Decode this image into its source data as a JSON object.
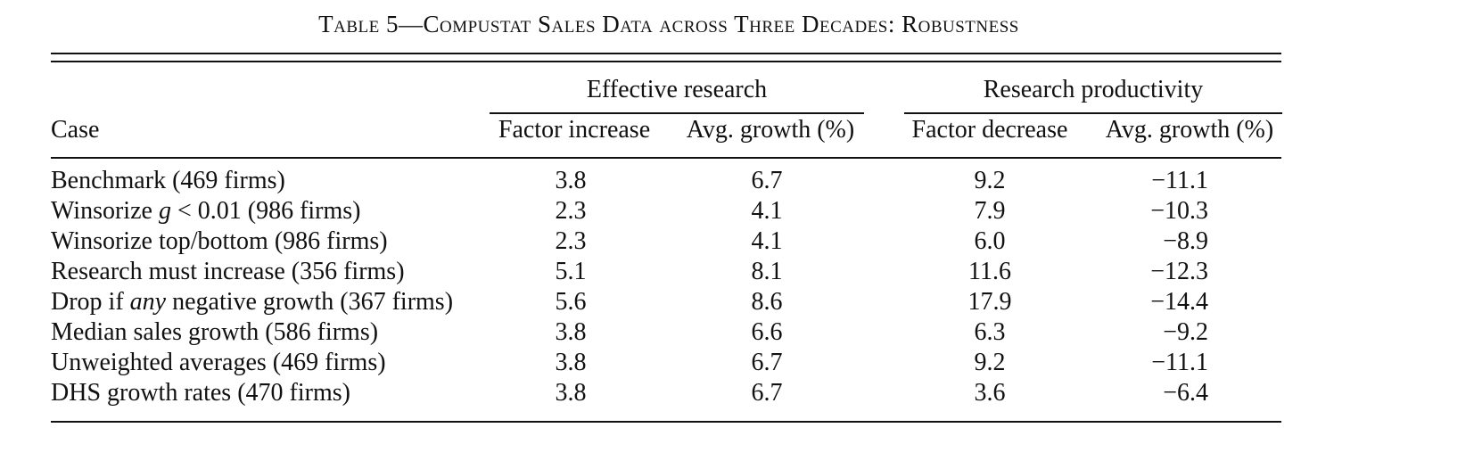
{
  "title": "Table 5—Compustat Sales Data across Three Decades: Robustness",
  "headers": {
    "group1": "Effective research",
    "group2": "Research productivity",
    "case": "Case",
    "col1": "Factor increase",
    "col2": "Avg. growth (%)",
    "col3": "Factor decrease",
    "col4": "Avg. growth (%)"
  },
  "rows": [
    {
      "case": "Benchmark (469 firms)",
      "v1": "3.8",
      "v2": "6.7",
      "v3": "9.2",
      "v4": "−11.1"
    },
    {
      "case": "Winsorize g < 0.01 (986 firms)",
      "v1": "2.3",
      "v2": "4.1",
      "v3": "7.9",
      "v4": "−10.3"
    },
    {
      "case": "Winsorize top/bottom (986 firms)",
      "v1": "2.3",
      "v2": "4.1",
      "v3": "6.0",
      "v4": "−8.9"
    },
    {
      "case": "Research must increase (356 firms)",
      "v1": "5.1",
      "v2": "8.1",
      "v3": "11.6",
      "v4": "−12.3"
    },
    {
      "case": "Drop if any negative growth (367 firms)",
      "v1": "5.6",
      "v2": "8.6",
      "v3": "17.9",
      "v4": "−14.4"
    },
    {
      "case": "Median sales growth (586 firms)",
      "v1": "3.8",
      "v2": "6.6",
      "v3": "6.3",
      "v4": "−9.2"
    },
    {
      "case": "Unweighted averages (469 firms)",
      "v1": "3.8",
      "v2": "6.7",
      "v3": "9.2",
      "v4": "−11.1"
    },
    {
      "case": "DHS growth rates (470 firms)",
      "v1": "3.8",
      "v2": "6.7",
      "v3": "3.6",
      "v4": "−6.4"
    }
  ]
}
